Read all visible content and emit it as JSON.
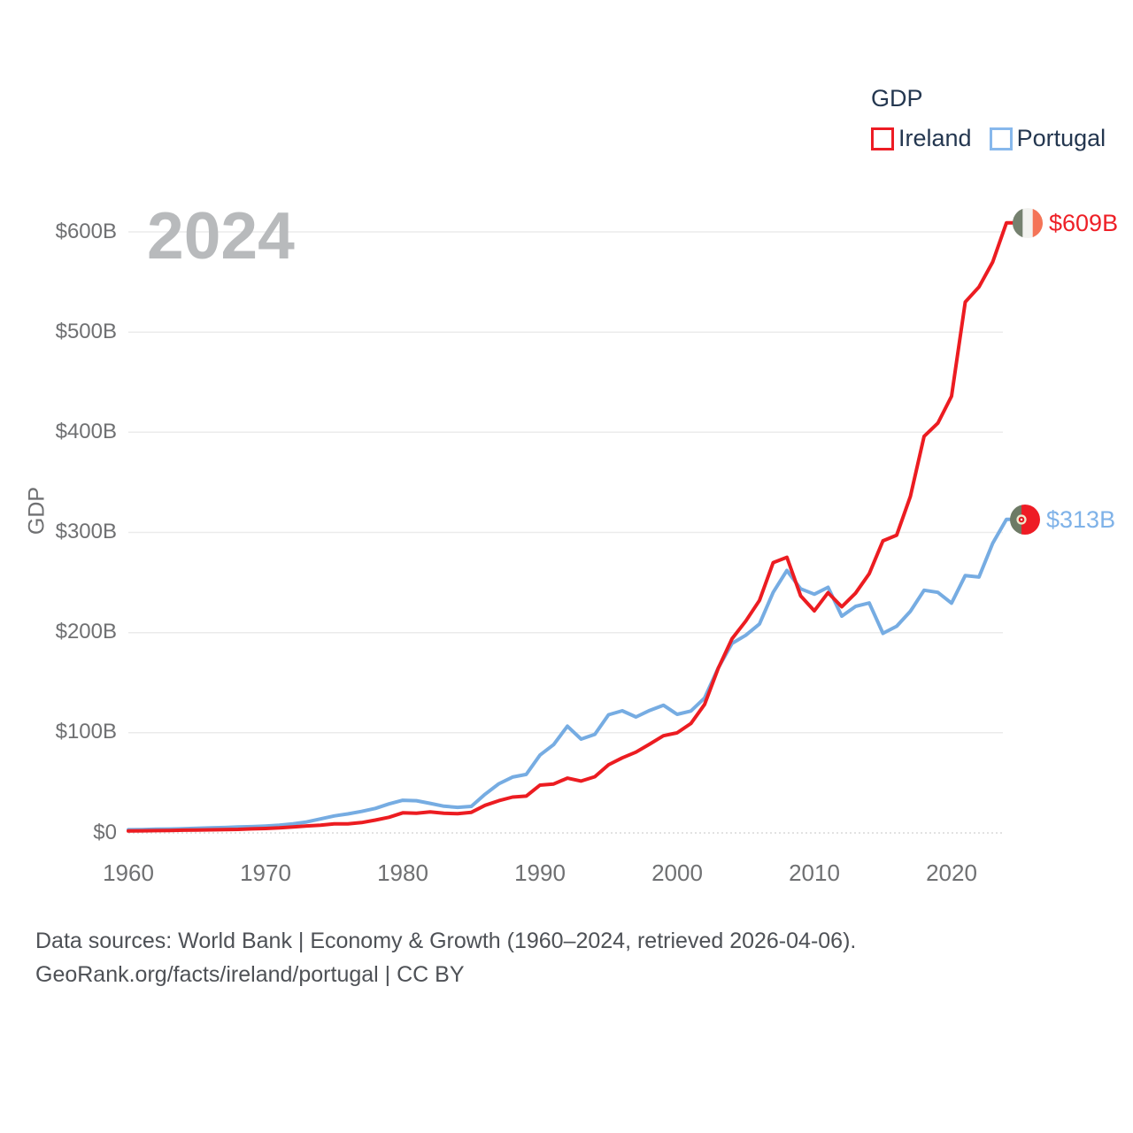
{
  "watermark_year": "2024",
  "legend": {
    "title": "GDP",
    "series": [
      {
        "label": "Ireland",
        "color": "#ed1c24"
      },
      {
        "label": "Portugal",
        "color": "#87b8ec"
      }
    ]
  },
  "y_axis": {
    "title": "GDP",
    "ticks": [
      "$0",
      "$100B",
      "$200B",
      "$300B",
      "$400B",
      "$500B",
      "$600B"
    ]
  },
  "x_axis": {
    "ticks": [
      "1960",
      "1970",
      "1980",
      "1990",
      "2000",
      "2010",
      "2020"
    ]
  },
  "end_labels": [
    {
      "series": "Ireland",
      "value": "$609B",
      "icon": "ireland-flag-icon"
    },
    {
      "series": "Portugal",
      "value": "$313B",
      "icon": "portugal-flag-icon"
    }
  ],
  "footer": {
    "line1": "Data sources: World Bank | Economy & Growth (1960–2024, retrieved 2026-04-06).",
    "line2": "GeoRank.org/facts/ireland/portugal | CC BY"
  },
  "colors": {
    "ireland_line": "#ec1c21",
    "portugal_line": "#76ace2",
    "gridline": "#ebebeb",
    "zero_gridline": "#d9d9d9",
    "axis_text": "#6f7072",
    "legend_text": "#243750",
    "watermark": "#b8babc",
    "footer_text": "#4e5156"
  },
  "chart_data": {
    "type": "line",
    "title": "GDP",
    "xlabel": "",
    "ylabel": "GDP",
    "ylim": [
      0,
      620
    ],
    "xlim": [
      1960,
      2024
    ],
    "grid": "horizontal",
    "legend_position": "top-right",
    "units": "current US$ billions",
    "x": [
      1960,
      1961,
      1962,
      1963,
      1964,
      1965,
      1966,
      1967,
      1968,
      1969,
      1970,
      1971,
      1972,
      1973,
      1974,
      1975,
      1976,
      1977,
      1978,
      1979,
      1980,
      1981,
      1982,
      1983,
      1984,
      1985,
      1986,
      1987,
      1988,
      1989,
      1990,
      1991,
      1992,
      1993,
      1994,
      1995,
      1996,
      1997,
      1998,
      1999,
      2000,
      2001,
      2002,
      2003,
      2004,
      2005,
      2006,
      2007,
      2008,
      2009,
      2010,
      2011,
      2012,
      2013,
      2014,
      2015,
      2016,
      2017,
      2018,
      2019,
      2020,
      2021,
      2022,
      2023,
      2024
    ],
    "series": [
      {
        "name": "Ireland",
        "color": "#ec1c21",
        "final_label": "$609B",
        "values": [
          1.9,
          2.1,
          2.3,
          2.4,
          2.7,
          2.9,
          3.1,
          3.4,
          3.5,
          4.1,
          4.4,
          5.0,
          6.0,
          7.0,
          7.7,
          9.0,
          9.0,
          10.3,
          12.8,
          15.6,
          20.1,
          19.7,
          20.9,
          19.7,
          19.2,
          20.6,
          27.6,
          32.2,
          35.8,
          36.8,
          47.7,
          48.9,
          54.7,
          51.8,
          56.1,
          68.0,
          74.9,
          80.7,
          88.7,
          97.0,
          99.9,
          109.2,
          128.3,
          164.5,
          193.9,
          211.5,
          232.1,
          269.9,
          275.2,
          236.7,
          221.7,
          239.8,
          225.8,
          239.3,
          258.8,
          291.6,
          297.3,
          336.0,
          396.0,
          409.0,
          436.0,
          530.0,
          545.0,
          570.0,
          609.0
        ]
      },
      {
        "name": "Portugal",
        "color": "#76ace2",
        "final_label": "$313B",
        "values": [
          3.2,
          3.4,
          3.7,
          3.9,
          4.2,
          4.6,
          5.0,
          5.4,
          5.9,
          6.3,
          6.9,
          7.7,
          9.1,
          11.0,
          14.0,
          17.0,
          19.0,
          21.5,
          24.5,
          29.0,
          32.6,
          32.2,
          29.5,
          26.7,
          25.5,
          26.5,
          38.6,
          49.0,
          55.8,
          58.4,
          77.7,
          88.2,
          106.6,
          93.7,
          98.4,
          118.0,
          121.9,
          115.8,
          122.3,
          127.5,
          118.4,
          121.7,
          134.7,
          164.8,
          189.2,
          197.3,
          208.6,
          240.2,
          262.0,
          243.7,
          238.3,
          245.2,
          216.4,
          226.1,
          229.6,
          199.3,
          206.3,
          221.3,
          242.3,
          240.2,
          229.4,
          257.0,
          255.5,
          289.1,
          313.0
        ]
      }
    ]
  }
}
